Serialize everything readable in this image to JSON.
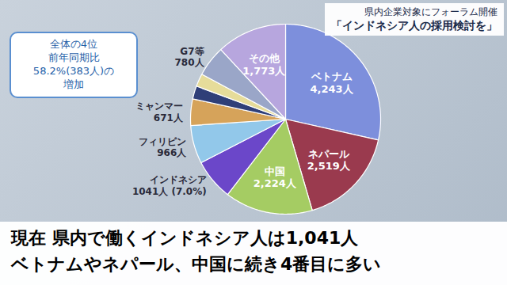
{
  "header": {
    "lines": [
      "県内企業対象にフォーラム開催",
      "「インドネシア人の採用検討を」"
    ]
  },
  "chart_data": {
    "type": "pie",
    "categories": [
      "ベトナム",
      "ネパール",
      "中国",
      "インドネシア",
      "フィリピン",
      "ミャンマー",
      null,
      null,
      "G7等",
      "その他"
    ],
    "values": [
      4243,
      2519,
      2224,
      1041,
      966,
      671,
      330,
      324,
      780,
      1773
    ],
    "value_labels": [
      "4,243人",
      "2,519人",
      "2,224人",
      "1041人 (7.0%)",
      "966人",
      "671人",
      null,
      null,
      "780人",
      "1,773人"
    ],
    "colors": [
      "#7d8fdc",
      "#9a3a4e",
      "#a5cc63",
      "#6b47c9",
      "#92c8ea",
      "#d6a35a",
      "#2f3f78",
      "#e6dc9a",
      "#9aa6c8",
      "#b7a6de"
    ],
    "data_labels": true,
    "annotations": [
      "全体の4位\n前年同期比\n58.2%(383人)の\n増加"
    ]
  },
  "caption": {
    "lines": [
      "現在 県内で働くインドネシア人は1,041人",
      "ベトナムやネパール、中国に続き4番目に多い"
    ]
  }
}
